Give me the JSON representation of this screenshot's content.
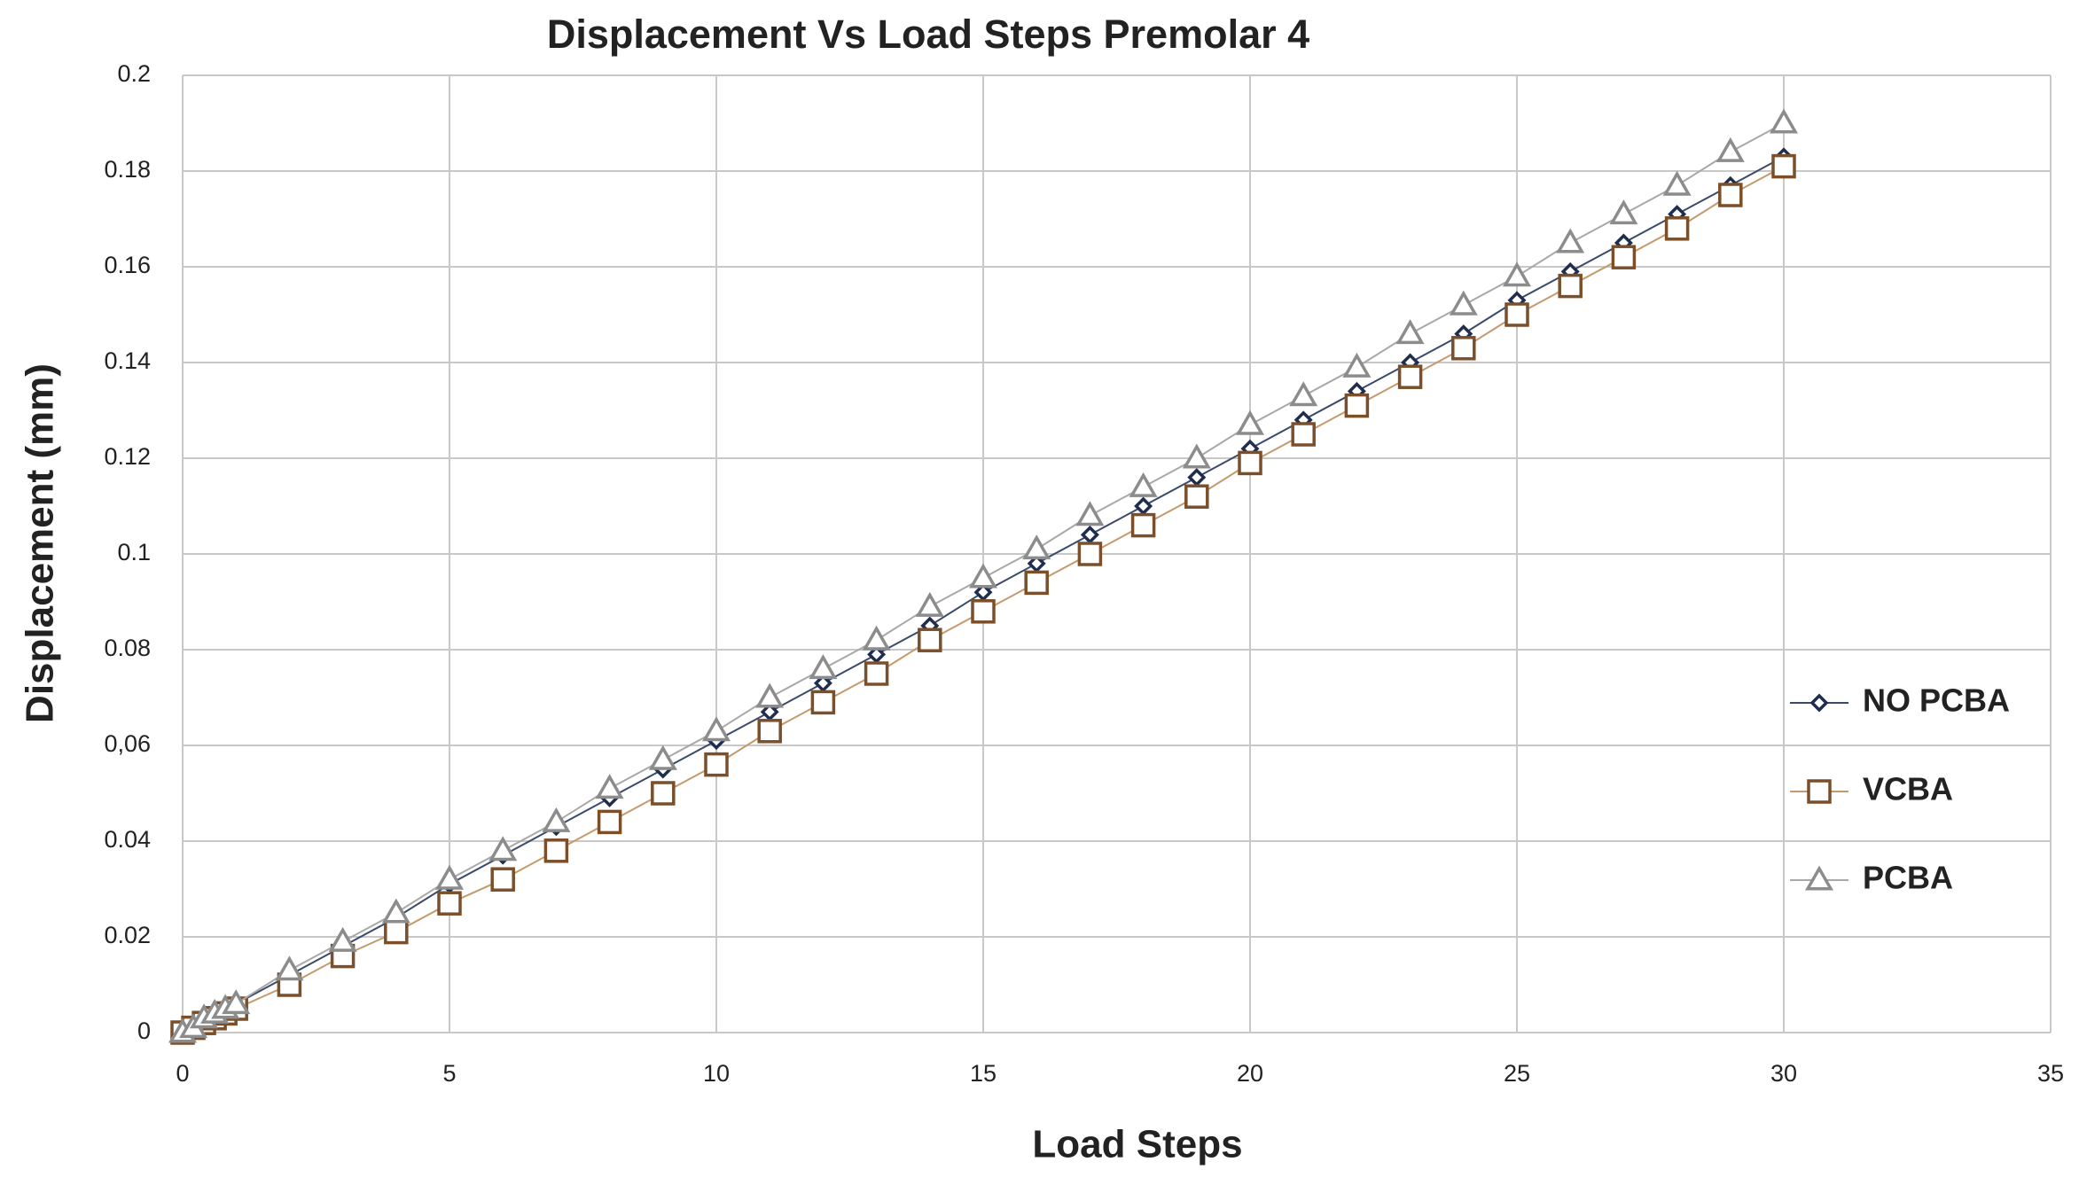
{
  "chart_data": {
    "type": "line",
    "title": "Displacement Vs Load Steps Premolar 4",
    "x_label": "Load Steps",
    "y_label": "Displacement (mm)",
    "x": [
      0,
      0.2,
      0.4,
      0.6,
      0.8,
      1,
      2,
      3,
      4,
      5,
      6,
      7,
      8,
      9,
      10,
      11,
      12,
      13,
      14,
      15,
      16,
      17,
      18,
      19,
      20,
      21,
      22,
      23,
      24,
      25,
      26,
      27,
      28,
      29,
      30
    ],
    "series": [
      {
        "name": "NO PCBA",
        "color": "#1f2d4e",
        "line_color": "#3a4a6b",
        "marker": "diamond",
        "values": [
          0,
          0.001,
          0.002,
          0.004,
          0.005,
          0.006,
          0.012,
          0.018,
          0.024,
          0.031,
          0.037,
          0.043,
          0.049,
          0.055,
          0.061,
          0.067,
          0.073,
          0.079,
          0.085,
          0.092,
          0.098,
          0.104,
          0.11,
          0.116,
          0.122,
          0.128,
          0.134,
          0.14,
          0.146,
          0.153,
          0.159,
          0.165,
          0.171,
          0.177,
          0.183
        ]
      },
      {
        "name": "VCBA",
        "color": "#7a4f2a",
        "line_color": "#c49a6c",
        "marker": "square",
        "values": [
          0,
          0.001,
          0.002,
          0.003,
          0.004,
          0.005,
          0.01,
          0.016,
          0.021,
          0.027,
          0.032,
          0.038,
          0.044,
          0.05,
          0.056,
          0.063,
          0.069,
          0.075,
          0.082,
          0.088,
          0.094,
          0.1,
          0.106,
          0.112,
          0.119,
          0.125,
          0.131,
          0.137,
          0.143,
          0.15,
          0.156,
          0.162,
          0.168,
          0.175,
          0.181
        ]
      },
      {
        "name": "PCBA",
        "color": "#8c8c8c",
        "line_color": "#a8a8a8",
        "marker": "triangle",
        "values": [
          0,
          0.001,
          0.003,
          0.004,
          0.005,
          0.006,
          0.013,
          0.019,
          0.025,
          0.032,
          0.038,
          0.044,
          0.051,
          0.057,
          0.063,
          0.07,
          0.076,
          0.082,
          0.089,
          0.095,
          0.101,
          0.108,
          0.114,
          0.12,
          0.127,
          0.133,
          0.139,
          0.146,
          0.152,
          0.158,
          0.165,
          0.171,
          0.177,
          0.184,
          0.19
        ]
      }
    ],
    "xlim": [
      0,
      35
    ],
    "xticks": [
      0,
      5,
      10,
      15,
      20,
      25,
      30,
      35
    ],
    "ylim": [
      0,
      0.2
    ],
    "yticks": [
      0,
      0.02,
      0.04,
      {
        "value": 0.06,
        "label": "0,06"
      },
      0.08,
      0.1,
      0.12,
      0.14,
      0.16,
      0.18,
      0.2
    ],
    "grid": true,
    "legend": "right"
  }
}
